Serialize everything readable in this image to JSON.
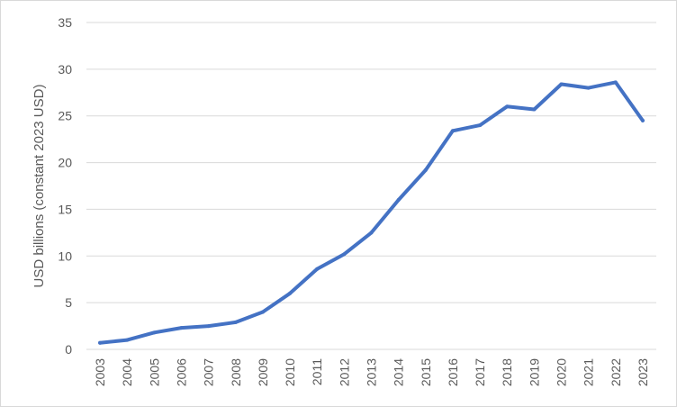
{
  "chart_data": {
    "type": "line",
    "title": "",
    "xlabel": "",
    "ylabel": "USD billions (constant 2023 USD)",
    "ylim": [
      0,
      35
    ],
    "yticks": [
      0,
      5,
      10,
      15,
      20,
      25,
      30,
      35
    ],
    "grid": true,
    "legend": "none",
    "categories": [
      "2003",
      "2004",
      "2005",
      "2006",
      "2007",
      "2008",
      "2009",
      "2010",
      "2011",
      "2012",
      "2013",
      "2014",
      "2015",
      "2016",
      "2017",
      "2018",
      "2019",
      "2020",
      "2021",
      "2022",
      "2023"
    ],
    "series": [
      {
        "color": "#4472c4",
        "values": [
          0.7,
          1.0,
          1.8,
          2.3,
          2.5,
          2.9,
          4.0,
          6.0,
          8.6,
          10.2,
          12.5,
          16.0,
          19.2,
          23.4,
          24.0,
          26.0,
          25.7,
          28.4,
          28.0,
          28.6,
          24.5
        ]
      }
    ]
  }
}
